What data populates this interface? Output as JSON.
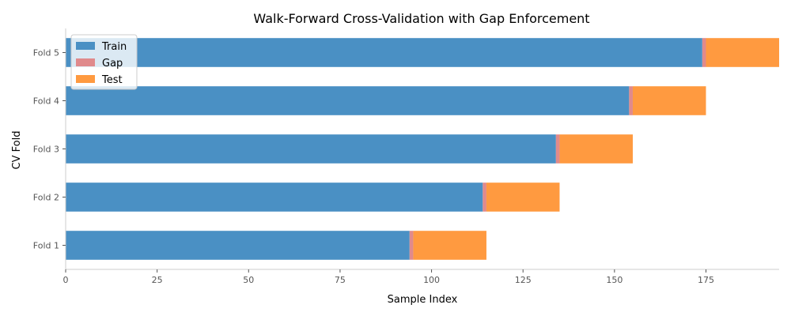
{
  "chart_data": {
    "type": "bar",
    "orientation": "horizontal",
    "stacked": true,
    "title": "Walk-Forward Cross-Validation with Gap Enforcement",
    "xlabel": "Sample Index",
    "ylabel": "CV Fold",
    "xlim": [
      0,
      195
    ],
    "xticks": [
      0,
      25,
      50,
      75,
      100,
      125,
      150,
      175
    ],
    "grid": false,
    "legend_position": "top-left",
    "categories": [
      "Fold 1",
      "Fold 2",
      "Fold 3",
      "Fold 4",
      "Fold 5"
    ],
    "series": [
      {
        "name": "Train",
        "color": "#4a90c4",
        "starts": [
          0,
          0,
          0,
          0,
          0
        ],
        "values": [
          94,
          114,
          134,
          154,
          174
        ]
      },
      {
        "name": "Gap",
        "color": "#e08a8c",
        "starts": [
          94,
          114,
          134,
          154,
          174
        ],
        "values": [
          1,
          1,
          1,
          1,
          1
        ]
      },
      {
        "name": "Test",
        "color": "#ff9a40",
        "starts": [
          95,
          115,
          135,
          155,
          175
        ],
        "values": [
          20,
          20,
          20,
          20,
          20
        ]
      }
    ]
  }
}
